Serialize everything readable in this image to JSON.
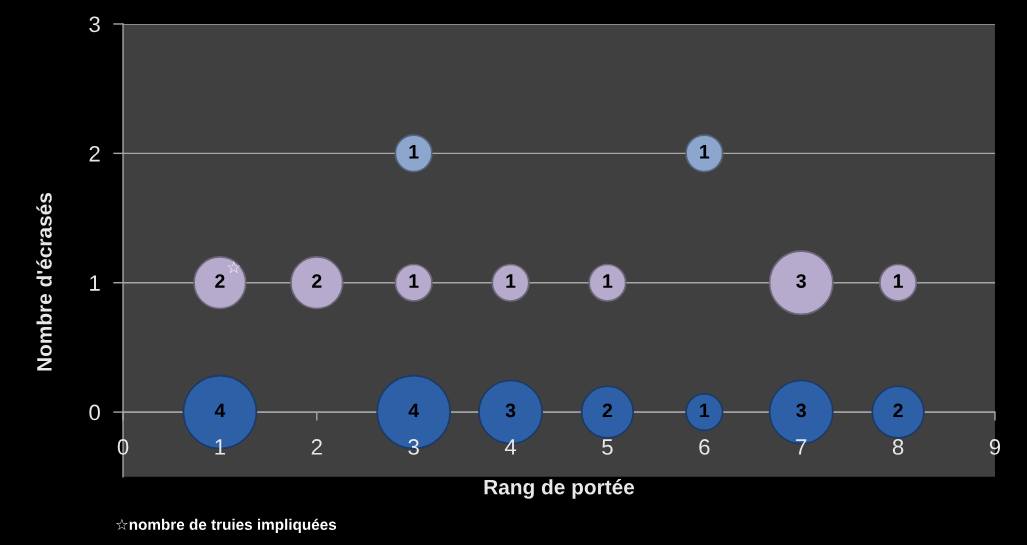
{
  "chart_data": {
    "type": "bubble",
    "xlabel": "Rang de portée",
    "ylabel": "Nombre d'écrasés",
    "xlim": [
      0,
      9
    ],
    "xticks": [
      0,
      1,
      2,
      3,
      4,
      5,
      6,
      7,
      8,
      9
    ],
    "ylim": [
      -0.5,
      3
    ],
    "yticks": [
      0,
      1,
      2,
      3
    ],
    "grid": "y",
    "marker": "circle",
    "series": [
      {
        "color": "#2e60a8",
        "x": [
          1,
          3,
          4,
          5,
          6,
          7,
          8
        ],
        "values": [
          0,
          0,
          0,
          0,
          0,
          0,
          0
        ],
        "sizes": [
          1,
          1,
          0.75,
          0.5,
          0.25,
          0.75,
          0.5
        ]
      },
      {
        "color": "#b6abcc",
        "x": [
          1,
          2,
          3,
          4,
          5,
          7,
          8
        ],
        "values": [
          1,
          1,
          1,
          1,
          1,
          1,
          1
        ],
        "sizes": [
          0.5,
          0.5,
          0.25,
          0.25,
          0.25,
          0.75,
          0.25
        ]
      },
      {
        "color": "#8ca6cd",
        "x": [
          3,
          6
        ],
        "values": [
          2,
          2
        ],
        "sizes": [
          0.25,
          0.25
        ]
      }
    ],
    "annotations": [
      {
        "text": "4",
        "x": 1,
        "y": 0
      },
      {
        "text": "4",
        "x": 3,
        "y": 0
      },
      {
        "text": "3",
        "x": 4,
        "y": 0
      },
      {
        "text": "2",
        "x": 5,
        "y": 0
      },
      {
        "text": "1",
        "x": 6,
        "y": 0
      },
      {
        "text": "3",
        "x": 7,
        "y": 0
      },
      {
        "text": "2",
        "x": 8,
        "y": 0
      },
      {
        "text": "2",
        "x": 1,
        "y": 1
      },
      {
        "text": "2",
        "x": 2,
        "y": 1
      },
      {
        "text": "1",
        "x": 3,
        "y": 1
      },
      {
        "text": "1",
        "x": 4,
        "y": 1
      },
      {
        "text": "1",
        "x": 5,
        "y": 1
      },
      {
        "text": "3",
        "x": 7,
        "y": 1
      },
      {
        "text": "1",
        "x": 8,
        "y": 1
      },
      {
        "text": "1",
        "x": 3,
        "y": 2
      },
      {
        "text": "1",
        "x": 6,
        "y": 2
      },
      {
        "text": "☆",
        "x": 1,
        "y": 1
      },
      "☆nombre de truies impliquées"
    ]
  }
}
